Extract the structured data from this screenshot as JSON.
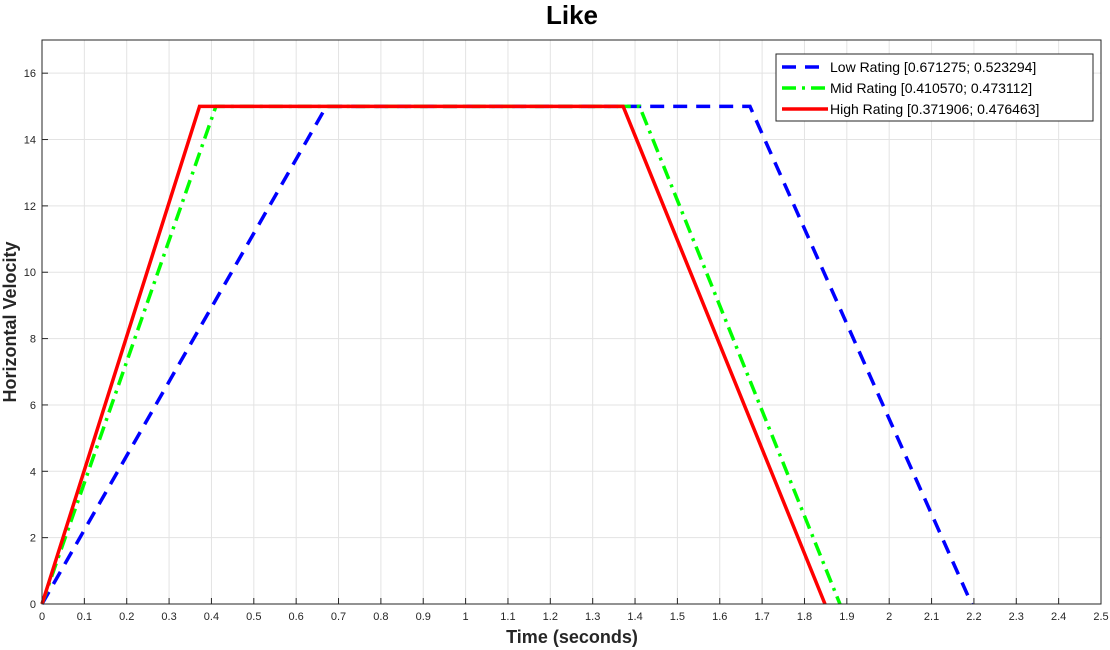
{
  "chart_data": {
    "type": "line",
    "title": "Like",
    "xlabel": "Time (seconds)",
    "ylabel": "Horizontal Velocity",
    "xlim": [
      0,
      2.5
    ],
    "ylim": [
      0,
      17
    ],
    "xticks": [
      0,
      0.1,
      0.2,
      0.3,
      0.4,
      0.5,
      0.6,
      0.7,
      0.8,
      0.9,
      1,
      1.1,
      1.2,
      1.3,
      1.4,
      1.5,
      1.6,
      1.7,
      1.8,
      1.9,
      2,
      2.1,
      2.2,
      2.3,
      2.4,
      2.5
    ],
    "xtick_labels": [
      "0",
      "0.1",
      "0.2",
      "0.3",
      "0.4",
      "0.5",
      "0.6",
      "0.7",
      "0.8",
      "0.9",
      "1",
      "1.1",
      "1.2",
      "1.3",
      "1.4",
      "1.5",
      "1.6",
      "1.7",
      "1.8",
      "1.9",
      "2",
      "2.1",
      "2.2",
      "2.3",
      "2.4",
      "2.5"
    ],
    "yticks": [
      0,
      2,
      4,
      6,
      8,
      10,
      12,
      14,
      16
    ],
    "ytick_labels": [
      "0",
      "2",
      "4",
      "6",
      "8",
      "10",
      "12",
      "14",
      "16"
    ],
    "grid": true,
    "legend_position": "top-right",
    "series": [
      {
        "name": "Low Rating [0.671275; 0.523294]",
        "color": "#0000ff",
        "style": "dashed",
        "x": [
          0,
          0.671275,
          1.671275,
          2.194569
        ],
        "y": [
          0,
          15,
          15,
          0
        ]
      },
      {
        "name": "Mid Rating [0.410570; 0.473112]",
        "color": "#00ff00",
        "style": "dashdot",
        "x": [
          0,
          0.41057,
          1.41057,
          1.883682
        ],
        "y": [
          0,
          15,
          15,
          0
        ]
      },
      {
        "name": "High Rating [0.371906; 0.476463]",
        "color": "#ff0000",
        "style": "solid",
        "x": [
          0,
          0.371906,
          1.371906,
          1.848369
        ],
        "y": [
          0,
          15,
          15,
          0
        ]
      }
    ]
  }
}
